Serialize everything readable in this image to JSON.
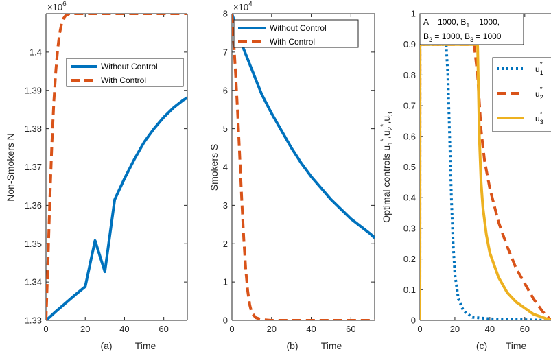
{
  "colors": {
    "blue": "#0072BD",
    "orange": "#D95319",
    "yellow": "#EDB120",
    "axis": "#262626"
  },
  "chart_data": [
    {
      "type": "line",
      "panel_label": "(a)",
      "xlabel": "Time",
      "ylabel": "Non-Smokers N",
      "exponent_label": "×10",
      "exponent_power": "6",
      "xlim": [
        0,
        72
      ],
      "ylim": [
        1.33,
        1.41
      ],
      "xticks": [
        0,
        20,
        40,
        60
      ],
      "yticks": [
        1.33,
        1.34,
        1.35,
        1.36,
        1.37,
        1.38,
        1.39,
        1.4
      ],
      "ytick_labels": [
        "1.33",
        "1.34",
        "1.35",
        "1.36",
        "1.37",
        "1.38",
        "1.39",
        "1.4"
      ],
      "legend_position": "upper-center",
      "series": [
        {
          "name": "Without Control",
          "style": "solid",
          "color": "#0072BD",
          "x": [
            0,
            2,
            5,
            10,
            15,
            20,
            25,
            30,
            35,
            40,
            45,
            50,
            55,
            60,
            65,
            70,
            72
          ],
          "y": [
            1.33,
            1.3309,
            1.3323,
            1.3345,
            1.3367,
            1.3388,
            1.3508,
            1.3427,
            1.3615,
            1.367,
            1.372,
            1.3765,
            1.38,
            1.383,
            1.3855,
            1.3875,
            1.3881
          ]
        },
        {
          "name": "With Control",
          "style": "dashed",
          "color": "#D95319",
          "x": [
            0,
            1,
            2,
            3,
            4,
            5,
            6,
            7,
            8,
            9,
            10,
            12,
            15,
            20,
            30,
            40,
            50,
            60,
            72
          ],
          "y": [
            1.33,
            1.345,
            1.362,
            1.376,
            1.387,
            1.395,
            1.401,
            1.405,
            1.4075,
            1.4088,
            1.4095,
            1.41,
            1.41,
            1.41,
            1.41,
            1.41,
            1.41,
            1.41,
            1.41
          ]
        }
      ]
    },
    {
      "type": "line",
      "panel_label": "(b)",
      "xlabel": "Time",
      "ylabel": "Smokers S",
      "exponent_label": "×10",
      "exponent_power": "4",
      "xlim": [
        0,
        72
      ],
      "ylim": [
        0,
        8
      ],
      "xticks": [
        0,
        20,
        40,
        60
      ],
      "yticks": [
        0,
        1,
        2,
        3,
        4,
        5,
        6,
        7,
        8
      ],
      "ytick_labels": [
        "0",
        "1",
        "2",
        "3",
        "4",
        "5",
        "6",
        "7",
        "8"
      ],
      "legend_position": "top-right",
      "series": [
        {
          "name": "Without Control",
          "style": "solid",
          "color": "#0072BD",
          "x": [
            0,
            5,
            10,
            15,
            20,
            25,
            30,
            35,
            40,
            45,
            50,
            55,
            60,
            65,
            70,
            72
          ],
          "y": [
            8.0,
            7.2,
            6.55,
            5.9,
            5.4,
            4.95,
            4.5,
            4.1,
            3.75,
            3.45,
            3.15,
            2.9,
            2.65,
            2.45,
            2.25,
            2.15
          ]
        },
        {
          "name": "With Control",
          "style": "dashed",
          "color": "#D95319",
          "x": [
            0,
            1,
            2,
            3,
            4,
            5,
            6,
            7,
            8,
            9,
            10,
            12,
            15,
            20,
            30,
            40,
            50,
            60,
            72
          ],
          "y": [
            8.0,
            7.2,
            6.3,
            5.3,
            4.2,
            3.1,
            2.1,
            1.3,
            0.75,
            0.4,
            0.2,
            0.07,
            0.02,
            0.0,
            0.0,
            0.0,
            0.0,
            0.0,
            0.0
          ]
        }
      ]
    },
    {
      "type": "line",
      "panel_label": "(c)",
      "xlabel": "Time",
      "ylabel": "Optimal controls u1*, u2*, u3*",
      "xlim": [
        0,
        75
      ],
      "ylim": [
        0,
        1
      ],
      "xticks": [
        0,
        20,
        40,
        60
      ],
      "yticks": [
        0,
        0.1,
        0.2,
        0.3,
        0.4,
        0.5,
        0.6,
        0.7,
        0.8,
        0.9,
        1
      ],
      "ytick_labels": [
        "0",
        "0.1",
        "0.2",
        "0.3",
        "0.4",
        "0.5",
        "0.6",
        "0.7",
        "0.8",
        "0.9",
        "1"
      ],
      "annotation": [
        "A = 1000, B",
        "1",
        " = 1000,",
        "B",
        "2",
        " = 1000, B",
        "3",
        " = 1000"
      ],
      "legend_position": "right",
      "series": [
        {
          "name": "u1*",
          "style": "dotted",
          "color": "#0072BD",
          "x": [
            0,
            0.05,
            15,
            16,
            17,
            18,
            19,
            20,
            22,
            25,
            30,
            40,
            50,
            60,
            75
          ],
          "y": [
            0,
            0.9,
            0.9,
            0.8,
            0.6,
            0.4,
            0.25,
            0.15,
            0.07,
            0.03,
            0.01,
            0.005,
            0.003,
            0.002,
            0.0
          ]
        },
        {
          "name": "u2*",
          "style": "dashed",
          "color": "#D95319",
          "x": [
            0,
            0.05,
            31,
            33,
            35,
            37,
            40,
            45,
            50,
            55,
            60,
            65,
            70,
            75
          ],
          "y": [
            0,
            0.9,
            0.9,
            0.8,
            0.62,
            0.52,
            0.43,
            0.32,
            0.24,
            0.17,
            0.12,
            0.07,
            0.03,
            0.0
          ]
        },
        {
          "name": "u3*",
          "style": "solid",
          "color": "#EDB120",
          "x": [
            0,
            0.05,
            33,
            34,
            35,
            36,
            38,
            40,
            45,
            50,
            55,
            60,
            65,
            70,
            75
          ],
          "y": [
            0,
            0.9,
            0.9,
            0.6,
            0.45,
            0.37,
            0.28,
            0.22,
            0.14,
            0.09,
            0.06,
            0.04,
            0.02,
            0.01,
            0.0
          ]
        }
      ]
    }
  ]
}
